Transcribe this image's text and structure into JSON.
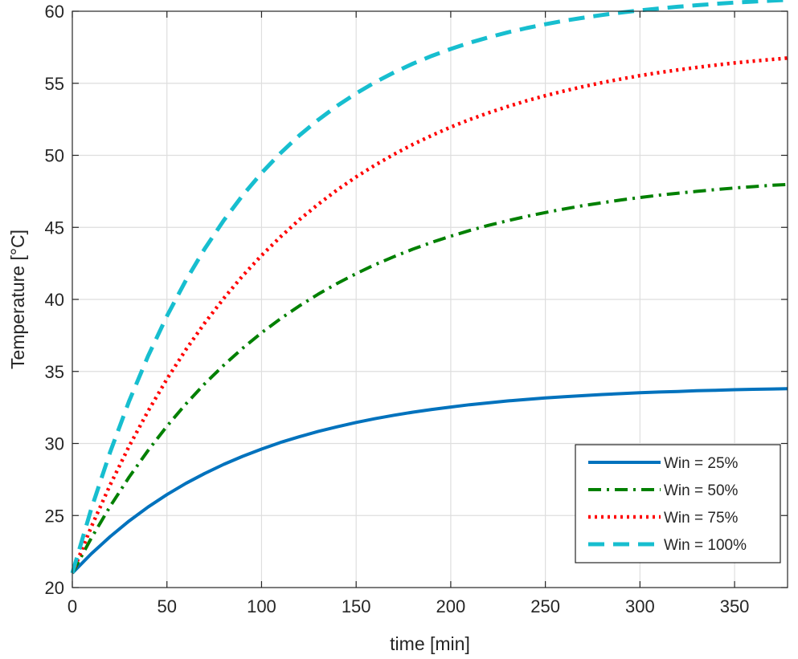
{
  "chart_data": {
    "type": "line",
    "xlabel": "time [min]",
    "ylabel": "Temperature [°C]",
    "xlim": [
      0,
      378
    ],
    "ylim": [
      20,
      60
    ],
    "xticks": [
      0,
      50,
      100,
      150,
      200,
      250,
      300,
      350
    ],
    "yticks": [
      20,
      25,
      30,
      35,
      40,
      45,
      50,
      55,
      60
    ],
    "grid": true,
    "legend_position": "bottom-right",
    "x": [
      0,
      10,
      20,
      30,
      40,
      50,
      60,
      70,
      80,
      90,
      100,
      110,
      120,
      130,
      140,
      150,
      160,
      170,
      180,
      190,
      200,
      210,
      220,
      230,
      240,
      250,
      260,
      270,
      280,
      290,
      300,
      310,
      320,
      330,
      340,
      350,
      360,
      370,
      378
    ],
    "series": [
      {
        "name": "Win = 25%",
        "color": "#0072BD",
        "dash": "solid",
        "values": [
          21.0,
          22.34,
          23.54,
          24.62,
          25.59,
          26.45,
          27.23,
          27.92,
          28.55,
          29.11,
          29.61,
          30.07,
          30.47,
          30.84,
          31.16,
          31.46,
          31.72,
          31.96,
          32.17,
          32.36,
          32.53,
          32.69,
          32.82,
          32.95,
          33.06,
          33.16,
          33.25,
          33.32,
          33.4,
          33.46,
          33.52,
          33.57,
          33.61,
          33.66,
          33.69,
          33.73,
          33.76,
          33.78,
          33.8
        ]
      },
      {
        "name": "Win = 50%",
        "color": "#008000",
        "dash": "dashdot",
        "values": [
          21.0,
          23.42,
          25.64,
          27.66,
          29.51,
          31.2,
          32.74,
          34.15,
          35.43,
          36.61,
          37.68,
          38.66,
          39.55,
          40.37,
          41.11,
          41.79,
          42.41,
          42.97,
          43.49,
          43.96,
          44.39,
          44.78,
          45.14,
          45.46,
          45.76,
          46.03,
          46.28,
          46.51,
          46.71,
          46.9,
          47.07,
          47.23,
          47.37,
          47.5,
          47.62,
          47.73,
          47.83,
          47.92,
          47.98
        ]
      },
      {
        "name": "Win = 75%",
        "color": "#FF0000",
        "dash": "dotted",
        "values": [
          21.0,
          24.2,
          27.13,
          29.8,
          32.24,
          34.47,
          36.51,
          38.37,
          40.07,
          41.63,
          43.05,
          44.34,
          45.53,
          46.61,
          47.6,
          48.5,
          49.32,
          50.07,
          50.76,
          51.38,
          51.96,
          52.48,
          52.95,
          53.38,
          53.78,
          54.14,
          54.47,
          54.77,
          55.05,
          55.3,
          55.53,
          55.74,
          55.93,
          56.1,
          56.26,
          56.41,
          56.54,
          56.66,
          56.75
        ]
      },
      {
        "name": "Win = 100%",
        "color": "#17BECF",
        "dash": "dashed",
        "values": [
          21.0,
          25.45,
          29.41,
          32.93,
          36.06,
          38.84,
          41.32,
          43.52,
          45.48,
          47.22,
          48.77,
          50.15,
          51.38,
          52.47,
          53.44,
          54.3,
          55.07,
          55.75,
          56.36,
          56.9,
          57.38,
          57.81,
          58.19,
          58.53,
          58.83,
          59.1,
          59.34,
          59.55,
          59.74,
          59.91,
          60.06,
          60.19,
          60.31,
          60.42,
          60.51,
          60.6,
          60.67,
          60.74,
          60.79
        ]
      }
    ]
  }
}
